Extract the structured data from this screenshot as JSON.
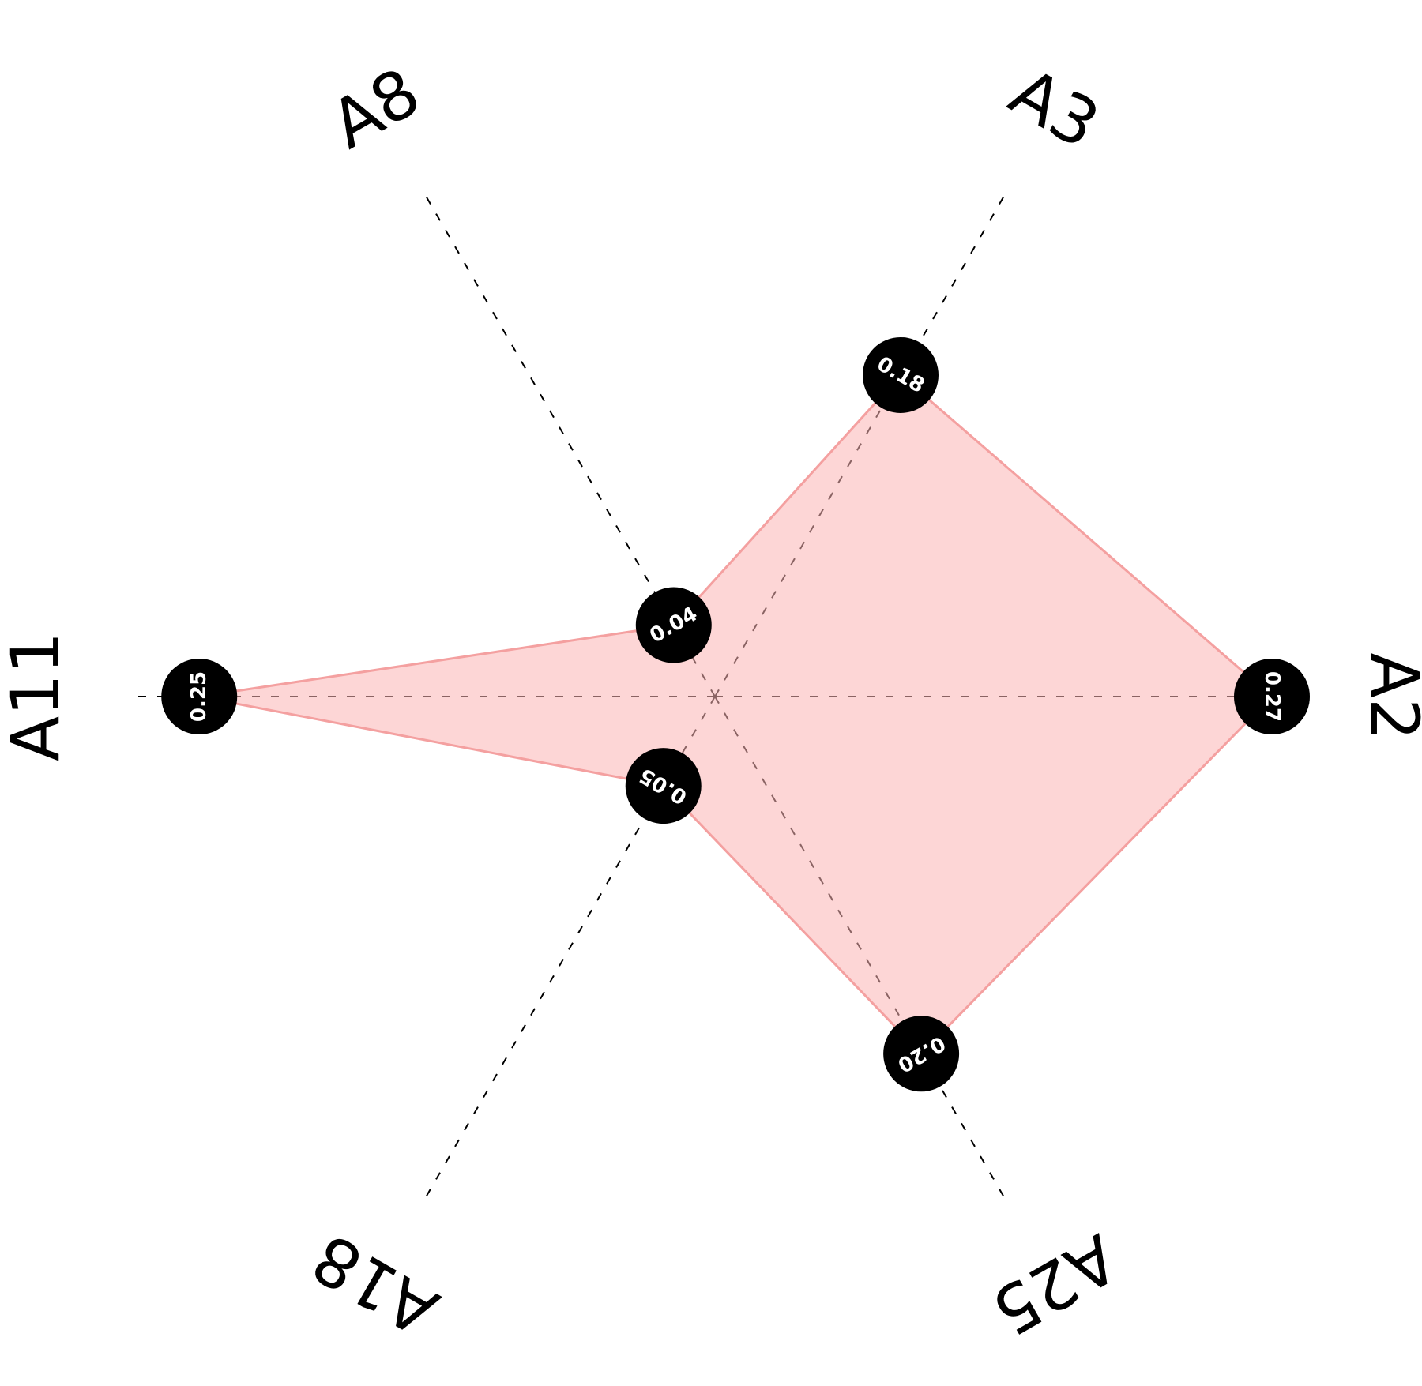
{
  "chart_data": {
    "type": "radar",
    "axes": [
      "A2",
      "A3",
      "A8",
      "A11",
      "A18",
      "A25"
    ],
    "series": [
      {
        "values": [
          0.27,
          0.18,
          0.04,
          0.25,
          0.05,
          0.2
        ],
        "labels": [
          "0.27",
          "0.18",
          "0.04",
          "0.25",
          "0.05",
          "0.20"
        ]
      }
    ],
    "range": [
      0,
      0.27
    ],
    "grid": false,
    "axis_style": "dashed",
    "colors": {
      "fill": "#fbb4b4",
      "stroke": "#f4a0a0",
      "marker": "#000000",
      "marker_text": "#ffffff",
      "axis": "#000000"
    }
  }
}
